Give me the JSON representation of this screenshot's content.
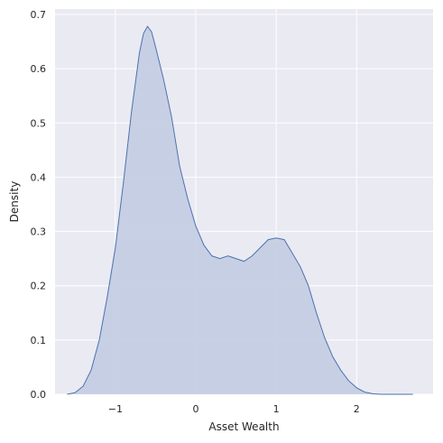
{
  "chart_data": {
    "type": "area",
    "title": "",
    "xlabel": "Asset Wealth",
    "ylabel": "Density",
    "xlim": [
      -1.75,
      2.95
    ],
    "ylim": [
      0,
      0.71
    ],
    "xticks": [
      -1,
      0,
      1,
      2
    ],
    "xtick_labels": [
      "−1",
      "0",
      "1",
      "2"
    ],
    "yticks": [
      0.0,
      0.1,
      0.2,
      0.3,
      0.4,
      0.5,
      0.6,
      0.7
    ],
    "ytick_labels": [
      "0.0",
      "0.1",
      "0.2",
      "0.3",
      "0.4",
      "0.5",
      "0.6",
      "0.7"
    ],
    "grid": true,
    "legend": "none",
    "colors": {
      "background": "#eaeaf2",
      "grid": "#ffffff",
      "line": "#4c72b0",
      "fill": "#c5cde3"
    },
    "series": [
      {
        "x": [
          -1.6,
          -1.5,
          -1.4,
          -1.3,
          -1.2,
          -1.1,
          -1.0,
          -0.9,
          -0.8,
          -0.7,
          -0.65,
          -0.6,
          -0.55,
          -0.5,
          -0.45,
          -0.4,
          -0.3,
          -0.2,
          -0.1,
          0.0,
          0.1,
          0.2,
          0.3,
          0.4,
          0.5,
          0.6,
          0.7,
          0.8,
          0.9,
          1.0,
          1.1,
          1.2,
          1.3,
          1.4,
          1.5,
          1.6,
          1.7,
          1.8,
          1.9,
          2.0,
          2.1,
          2.2,
          2.3,
          2.4,
          2.5,
          2.6,
          2.7
        ],
        "y": [
          0.0,
          0.003,
          0.015,
          0.045,
          0.1,
          0.18,
          0.27,
          0.39,
          0.52,
          0.63,
          0.665,
          0.678,
          0.668,
          0.64,
          0.61,
          0.58,
          0.51,
          0.42,
          0.36,
          0.31,
          0.275,
          0.255,
          0.25,
          0.255,
          0.25,
          0.245,
          0.255,
          0.27,
          0.285,
          0.288,
          0.285,
          0.26,
          0.235,
          0.2,
          0.15,
          0.105,
          0.07,
          0.045,
          0.025,
          0.012,
          0.004,
          0.001,
          0.0,
          0.0,
          0.0,
          0.0,
          0.0
        ]
      }
    ]
  }
}
